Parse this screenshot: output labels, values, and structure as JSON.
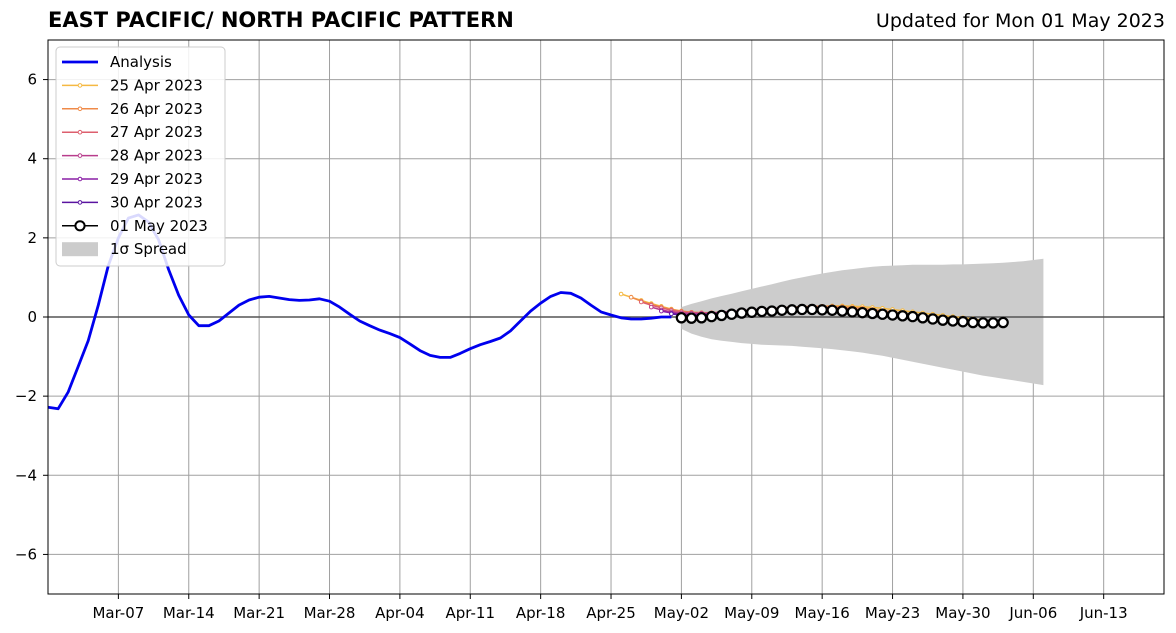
{
  "title": "EAST PACIFIC/ NORTH PACIFIC PATTERN",
  "updated": "Updated for Mon 01 May 2023",
  "chart_data": {
    "type": "line",
    "title": "EAST PACIFIC/ NORTH PACIFIC PATTERN",
    "xlabel": "",
    "ylabel": "",
    "ylim": [
      -7,
      7
    ],
    "xlim": [
      "2023-02-28",
      "2023-06-19"
    ],
    "grid": true,
    "legend_position": "top-left",
    "x_ticks": [
      "2023-03-07",
      "2023-03-14",
      "2023-03-21",
      "2023-03-28",
      "2023-04-04",
      "2023-04-11",
      "2023-04-18",
      "2023-04-25",
      "2023-05-02",
      "2023-05-09",
      "2023-05-16",
      "2023-05-23",
      "2023-05-30",
      "2023-06-06",
      "2023-06-13"
    ],
    "x_tick_labels": [
      "Mar-07",
      "Mar-14",
      "Mar-21",
      "Mar-28",
      "Apr-04",
      "Apr-11",
      "Apr-18",
      "Apr-25",
      "May-02",
      "May-09",
      "May-16",
      "May-23",
      "May-30",
      "Jun-06",
      "Jun-13"
    ],
    "y_ticks": [
      -6,
      -4,
      -2,
      0,
      2,
      4,
      6
    ],
    "y_tick_labels": [
      "−6",
      "−4",
      "−2",
      "0",
      "2",
      "4",
      "6"
    ],
    "legend": [
      {
        "label": "Analysis",
        "color": "#0000ee",
        "kind": "line"
      },
      {
        "label": "25 Apr 2023",
        "color": "#f5b942",
        "kind": "marker-line"
      },
      {
        "label": "26 Apr 2023",
        "color": "#ef8a48",
        "kind": "marker-line"
      },
      {
        "label": "27 Apr 2023",
        "color": "#dd5f6e",
        "kind": "marker-line"
      },
      {
        "label": "28 Apr 2023",
        "color": "#b83d8c",
        "kind": "marker-line"
      },
      {
        "label": "29 Apr 2023",
        "color": "#8a1fa6",
        "kind": "marker-line"
      },
      {
        "label": "30 Apr 2023",
        "color": "#5a14a0",
        "kind": "marker-line"
      },
      {
        "label": "01 May 2023",
        "color": "#000000",
        "kind": "open-circle"
      },
      {
        "label": "1σ Spread",
        "color": "#cccccc",
        "kind": "patch"
      }
    ],
    "analysis": {
      "name": "Analysis",
      "color": "#0000ee",
      "x": [
        "2023-02-28",
        "2023-03-01",
        "2023-03-02",
        "2023-03-03",
        "2023-03-04",
        "2023-03-05",
        "2023-03-06",
        "2023-03-07",
        "2023-03-08",
        "2023-03-09",
        "2023-03-10",
        "2023-03-11",
        "2023-03-12",
        "2023-03-13",
        "2023-03-14",
        "2023-03-15",
        "2023-03-16",
        "2023-03-17",
        "2023-03-18",
        "2023-03-19",
        "2023-03-20",
        "2023-03-21",
        "2023-03-22",
        "2023-03-23",
        "2023-03-24",
        "2023-03-25",
        "2023-03-26",
        "2023-03-27",
        "2023-03-28",
        "2023-03-29",
        "2023-03-30",
        "2023-03-31",
        "2023-04-01",
        "2023-04-02",
        "2023-04-03",
        "2023-04-04",
        "2023-04-05",
        "2023-04-06",
        "2023-04-07",
        "2023-04-08",
        "2023-04-09",
        "2023-04-10",
        "2023-04-11",
        "2023-04-12",
        "2023-04-13",
        "2023-04-14",
        "2023-04-15",
        "2023-04-16",
        "2023-04-17",
        "2023-04-18",
        "2023-04-19",
        "2023-04-20",
        "2023-04-21",
        "2023-04-22",
        "2023-04-23",
        "2023-04-24",
        "2023-04-25",
        "2023-04-26",
        "2023-04-27",
        "2023-04-28",
        "2023-04-29",
        "2023-04-30",
        "2023-05-01"
      ],
      "y": [
        -2.28,
        -2.32,
        -1.9,
        -1.25,
        -0.6,
        0.3,
        1.3,
        2.0,
        2.5,
        2.58,
        2.4,
        1.95,
        1.2,
        0.55,
        0.05,
        -0.22,
        -0.22,
        -0.1,
        0.1,
        0.3,
        0.43,
        0.5,
        0.52,
        0.48,
        0.44,
        0.42,
        0.43,
        0.46,
        0.4,
        0.25,
        0.07,
        -0.1,
        -0.22,
        -0.33,
        -0.42,
        -0.52,
        -0.68,
        -0.85,
        -0.97,
        -1.02,
        -1.02,
        -0.92,
        -0.8,
        -0.7,
        -0.62,
        -0.53,
        -0.35,
        -0.1,
        0.15,
        0.35,
        0.52,
        0.62,
        0.6,
        0.48,
        0.3,
        0.13,
        0.05,
        -0.02,
        -0.05,
        -0.05,
        -0.03,
        0.0,
        0.0
      ]
    },
    "forecasts": [
      {
        "name": "25 Apr 2023",
        "color": "#f5b942",
        "x0": "2023-04-26",
        "y": [
          0.58,
          0.5,
          0.42,
          0.34,
          0.27,
          0.2,
          0.15,
          0.12,
          0.1,
          0.1,
          0.1,
          0.11,
          0.12,
          0.14,
          0.16,
          0.18,
          0.2,
          0.22,
          0.24,
          0.26,
          0.27,
          0.28,
          0.28,
          0.27,
          0.26,
          0.24,
          0.22,
          0.19,
          0.16,
          0.13,
          0.1,
          0.07,
          0.04,
          0.01,
          -0.02,
          -0.05,
          -0.08,
          -0.1,
          -0.12
        ]
      },
      {
        "name": "26 Apr 2023",
        "color": "#ef8a48",
        "x0": "2023-04-27",
        "y": [
          0.5,
          0.4,
          0.32,
          0.25,
          0.19,
          0.15,
          0.12,
          0.11,
          0.11,
          0.12,
          0.13,
          0.15,
          0.17,
          0.19,
          0.21,
          0.23,
          0.25,
          0.26,
          0.27,
          0.27,
          0.27,
          0.26,
          0.24,
          0.22,
          0.19,
          0.16,
          0.13,
          0.1,
          0.07,
          0.04,
          0.01,
          -0.02,
          -0.05,
          -0.07,
          -0.09,
          -0.11,
          -0.12
        ]
      },
      {
        "name": "27 Apr 2023",
        "color": "#dd5f6e",
        "x0": "2023-04-28",
        "y": [
          0.38,
          0.3,
          0.23,
          0.17,
          0.13,
          0.11,
          0.1,
          0.1,
          0.11,
          0.13,
          0.15,
          0.17,
          0.19,
          0.21,
          0.23,
          0.24,
          0.25,
          0.25,
          0.25,
          0.24,
          0.22,
          0.2,
          0.17,
          0.14,
          0.11,
          0.08,
          0.05,
          0.02,
          -0.01,
          -0.04,
          -0.06,
          -0.08,
          -0.1,
          -0.11,
          -0.12,
          -0.13
        ]
      },
      {
        "name": "28 Apr 2023",
        "color": "#b83d8c",
        "x0": "2023-04-29",
        "y": [
          0.25,
          0.18,
          0.13,
          0.1,
          0.09,
          0.09,
          0.1,
          0.12,
          0.14,
          0.16,
          0.18,
          0.2,
          0.21,
          0.22,
          0.23,
          0.23,
          0.23,
          0.22,
          0.2,
          0.18,
          0.15,
          0.12,
          0.09,
          0.06,
          0.03,
          0.0,
          -0.03,
          -0.05,
          -0.07,
          -0.09,
          -0.11,
          -0.12,
          -0.13,
          -0.13,
          -0.14
        ]
      },
      {
        "name": "29 Apr 2023",
        "color": "#8a1fa6",
        "x0": "2023-04-30",
        "y": [
          0.15,
          0.1,
          0.07,
          0.06,
          0.07,
          0.08,
          0.1,
          0.12,
          0.14,
          0.16,
          0.18,
          0.19,
          0.2,
          0.21,
          0.21,
          0.21,
          0.2,
          0.18,
          0.16,
          0.13,
          0.1,
          0.07,
          0.04,
          0.01,
          -0.02,
          -0.04,
          -0.06,
          -0.08,
          -0.1,
          -0.11,
          -0.12,
          -0.13,
          -0.14,
          -0.14
        ]
      },
      {
        "name": "30 Apr 2023",
        "color": "#5a14a0",
        "x0": "2023-05-01",
        "y": [
          0.08,
          0.04,
          0.02,
          0.03,
          0.05,
          0.07,
          0.09,
          0.11,
          0.13,
          0.15,
          0.17,
          0.18,
          0.19,
          0.2,
          0.2,
          0.19,
          0.18,
          0.16,
          0.14,
          0.11,
          0.08,
          0.05,
          0.02,
          -0.01,
          -0.03,
          -0.05,
          -0.07,
          -0.09,
          -0.1,
          -0.11,
          -0.12,
          -0.13,
          -0.14
        ]
      }
    ],
    "current_forecast": {
      "name": "01 May 2023",
      "color": "#000000",
      "x0": "2023-05-02",
      "y": [
        -0.02,
        -0.03,
        -0.02,
        0.01,
        0.04,
        0.07,
        0.1,
        0.12,
        0.14,
        0.15,
        0.17,
        0.18,
        0.19,
        0.19,
        0.18,
        0.17,
        0.15,
        0.13,
        0.11,
        0.09,
        0.07,
        0.05,
        0.03,
        0.01,
        -0.02,
        -0.05,
        -0.08,
        -0.1,
        -0.12,
        -0.14,
        -0.15,
        -0.15,
        -0.14
      ]
    },
    "spread": {
      "name": "1σ Spread",
      "color": "#cccccc",
      "x0": "2023-05-02",
      "upper": [
        0.25,
        0.33,
        0.4,
        0.47,
        0.53,
        0.59,
        0.65,
        0.71,
        0.77,
        0.83,
        0.89,
        0.95,
        1.0,
        1.05,
        1.1,
        1.14,
        1.18,
        1.21,
        1.24,
        1.27,
        1.29,
        1.3,
        1.31,
        1.32,
        1.32,
        1.32,
        1.32,
        1.33,
        1.33,
        1.34,
        1.35,
        1.36,
        1.37,
        1.39,
        1.41,
        1.44,
        1.47
      ],
      "lower": [
        -0.3,
        -0.42,
        -0.5,
        -0.56,
        -0.6,
        -0.63,
        -0.66,
        -0.68,
        -0.7,
        -0.71,
        -0.72,
        -0.73,
        -0.75,
        -0.77,
        -0.79,
        -0.81,
        -0.84,
        -0.87,
        -0.9,
        -0.94,
        -0.98,
        -1.03,
        -1.08,
        -1.13,
        -1.18,
        -1.23,
        -1.28,
        -1.33,
        -1.38,
        -1.43,
        -1.48,
        -1.52,
        -1.56,
        -1.6,
        -1.64,
        -1.68,
        -1.72
      ]
    }
  }
}
